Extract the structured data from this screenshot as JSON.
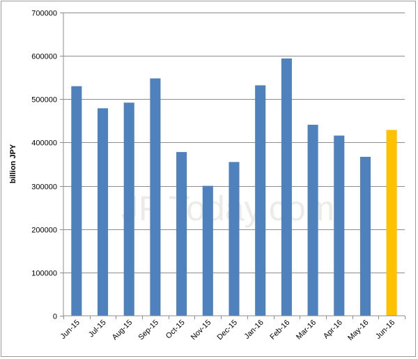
{
  "chart_data": {
    "type": "bar",
    "ylabel": "billion JPY",
    "watermark": "JF Today.com",
    "categories": [
      "Jun-15",
      "Jul-15",
      "Aug-15",
      "Sep-15",
      "Oct-15",
      "Nov-15",
      "Dec-15",
      "Jan-16",
      "Feb-16",
      "Mar-16",
      "Apr-16",
      "May-16",
      "Jun-16"
    ],
    "values": [
      530000,
      479000,
      492000,
      548000,
      378000,
      300000,
      355000,
      532000,
      594000,
      441000,
      416000,
      367000,
      429000
    ],
    "highlight_index": 12,
    "ylim": [
      0,
      700000
    ],
    "yticks": [
      0,
      100000,
      200000,
      300000,
      400000,
      500000,
      600000,
      700000
    ],
    "ytick_labels": [
      "0",
      "100000",
      "200000",
      "300000",
      "400000",
      "500000",
      "600000",
      "700000"
    ],
    "grid": true,
    "legend": "none",
    "colors": {
      "bar": "#4f81bd",
      "highlight": "#ffc000",
      "grid": "#8c8c8c"
    }
  }
}
